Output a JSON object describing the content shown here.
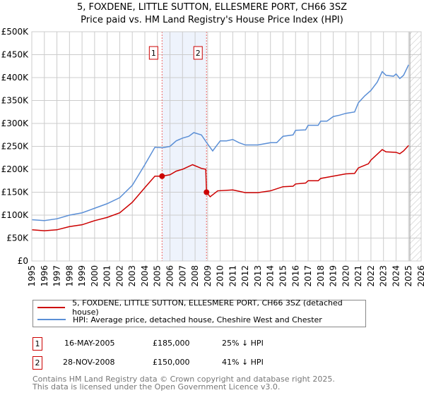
{
  "chart_data": {
    "type": "line",
    "title": "5, FOXDENE, LITTLE SUTTON, ELLESMERE PORT, CH66 3SZ",
    "subtitle": "Price paid vs. HM Land Registry's House Price Index (HPI)",
    "xlim": [
      1995,
      2026
    ],
    "ylim": [
      0,
      500000
    ],
    "x_ticks": [
      "1995",
      "1996",
      "1997",
      "1998",
      "1999",
      "2000",
      "2001",
      "2002",
      "2003",
      "2004",
      "2005",
      "2006",
      "2007",
      "2008",
      "2009",
      "2010",
      "2011",
      "2012",
      "2013",
      "2014",
      "2015",
      "2016",
      "2017",
      "2018",
      "2019",
      "2020",
      "2021",
      "2022",
      "2023",
      "2024",
      "2025",
      "2026"
    ],
    "y_ticks": [
      {
        "v": 0,
        "label": "£0"
      },
      {
        "v": 50000,
        "label": "£50K"
      },
      {
        "v": 100000,
        "label": "£100K"
      },
      {
        "v": 150000,
        "label": "£150K"
      },
      {
        "v": 200000,
        "label": "£200K"
      },
      {
        "v": 250000,
        "label": "£250K"
      },
      {
        "v": 300000,
        "label": "£300K"
      },
      {
        "v": 350000,
        "label": "£350K"
      },
      {
        "v": 400000,
        "label": "£400K"
      },
      {
        "v": 450000,
        "label": "£450K"
      },
      {
        "v": 500000,
        "label": "£500K"
      }
    ],
    "grid": true,
    "shaded_range": [
      2005.37,
      2008.91
    ],
    "hatched_from": 2025.1,
    "series": [
      {
        "name": "5, FOXDENE, LITTLE SUTTON, ELLESMERE PORT, CH66 3SZ (detached house)",
        "color": "#cc0000",
        "x": [
          1995,
          1996,
          1997,
          1998,
          1999,
          2000,
          2001,
          2002,
          2003,
          2004,
          2004.8,
          2005.37,
          2006,
          2006.5,
          2007,
          2007.8,
          2008.5,
          2008.85,
          2008.91,
          2009.2,
          2009.8,
          2011,
          2012,
          2013,
          2014,
          2015,
          2015.8,
          2016,
          2016.8,
          2017,
          2017.8,
          2018,
          2019,
          2020,
          2020.7,
          2021,
          2021.8,
          2022,
          2022.9,
          2023.2,
          2024,
          2024.3,
          2024.6,
          2025
        ],
        "y": [
          68000,
          66000,
          68000,
          75000,
          79000,
          88000,
          95000,
          105000,
          128000,
          160000,
          185000,
          185000,
          188000,
          196000,
          200000,
          210000,
          202000,
          200000,
          150000,
          140000,
          153000,
          155000,
          149000,
          149000,
          153000,
          162000,
          163000,
          168000,
          170000,
          175000,
          175000,
          180000,
          185000,
          190000,
          191000,
          203000,
          212000,
          220000,
          243000,
          238000,
          237000,
          234000,
          240000,
          252000
        ]
      },
      {
        "name": "HPI: Average price, detached house, Cheshire West and Chester",
        "color": "#5b8fd6",
        "x": [
          1995,
          1996,
          1997,
          1998,
          1999,
          2000,
          2001,
          2002,
          2003,
          2004,
          2004.8,
          2005.4,
          2006,
          2006.5,
          2007,
          2007.5,
          2007.9,
          2008.5,
          2009,
          2009.4,
          2010,
          2010.5,
          2011,
          2011.5,
          2012,
          2013,
          2014,
          2014.5,
          2015,
          2015.8,
          2016,
          2016.8,
          2017,
          2017.8,
          2018,
          2018.5,
          2019,
          2019.5,
          2020,
          2020.7,
          2021,
          2021.5,
          2022,
          2022.5,
          2022.9,
          2023.2,
          2023.8,
          2024,
          2024.3,
          2024.6,
          2025
        ],
        "y": [
          90000,
          88000,
          92000,
          100000,
          105000,
          115000,
          125000,
          138000,
          165000,
          210000,
          248000,
          247000,
          250000,
          262000,
          268000,
          272000,
          280000,
          275000,
          255000,
          240000,
          262000,
          262000,
          265000,
          258000,
          253000,
          253000,
          258000,
          258000,
          272000,
          275000,
          285000,
          286000,
          296000,
          296000,
          305000,
          305000,
          315000,
          318000,
          322000,
          325000,
          345000,
          360000,
          372000,
          390000,
          413000,
          405000,
          403000,
          408000,
          398000,
          405000,
          428000
        ]
      }
    ],
    "sales": [
      {
        "id": "1",
        "x": 2005.37,
        "y": 185000,
        "date": "16-MAY-2005",
        "price": "£185,000",
        "delta": "25% ↓ HPI"
      },
      {
        "id": "2",
        "x": 2008.91,
        "y": 150000,
        "date": "28-NOV-2008",
        "price": "£150,000",
        "delta": "41% ↓ HPI"
      }
    ]
  },
  "footer": {
    "line1": "Contains HM Land Registry data © Crown copyright and database right 2025.",
    "line2": "This data is licensed under the Open Government Licence v3.0."
  }
}
